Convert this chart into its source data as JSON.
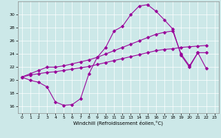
{
  "xlabel": "Windchill (Refroidissement éolien,°C)",
  "bg_color": "#cce8e8",
  "line_color": "#990099",
  "ylim": [
    15,
    32
  ],
  "xlim": [
    -0.5,
    23.5
  ],
  "yticks": [
    16,
    18,
    20,
    22,
    24,
    26,
    28,
    30
  ],
  "xticks": [
    0,
    1,
    2,
    3,
    4,
    5,
    6,
    7,
    8,
    9,
    10,
    11,
    12,
    13,
    14,
    15,
    16,
    17,
    18,
    19,
    20,
    21,
    22,
    23
  ],
  "curve1_x": [
    0,
    1,
    2,
    3,
    4,
    5,
    6,
    7,
    8,
    9,
    10,
    11,
    12,
    13,
    14,
    15,
    16,
    17,
    18,
    19,
    20,
    21,
    22
  ],
  "curve1_y": [
    20.5,
    20.0,
    19.7,
    19.0,
    16.7,
    16.2,
    16.3,
    17.2,
    21.0,
    23.5,
    25.0,
    27.5,
    28.2,
    30.0,
    31.3,
    31.5,
    30.5,
    29.2,
    27.8,
    23.8,
    22.0,
    24.2,
    21.8
  ],
  "curve2_x": [
    0,
    1,
    2,
    3,
    4,
    5,
    6,
    7,
    8,
    9,
    10,
    11,
    12,
    13,
    14,
    15,
    16,
    17,
    18,
    19,
    20,
    21,
    22
  ],
  "curve2_y": [
    20.5,
    21.0,
    21.5,
    22.0,
    22.0,
    22.2,
    22.5,
    22.8,
    23.1,
    23.5,
    24.0,
    24.5,
    25.0,
    25.5,
    26.0,
    26.5,
    27.0,
    27.3,
    27.5,
    24.0,
    22.2,
    24.2,
    24.2
  ],
  "curve3_x": [
    0,
    1,
    2,
    3,
    4,
    5,
    6,
    7,
    8,
    9,
    10,
    11,
    12,
    13,
    14,
    15,
    16,
    17,
    18,
    19,
    20,
    21,
    22
  ],
  "curve3_y": [
    20.5,
    20.8,
    21.0,
    21.2,
    21.3,
    21.5,
    21.7,
    21.9,
    22.1,
    22.4,
    22.7,
    23.0,
    23.3,
    23.6,
    23.9,
    24.2,
    24.5,
    24.7,
    24.8,
    25.0,
    25.1,
    25.2,
    25.3
  ]
}
